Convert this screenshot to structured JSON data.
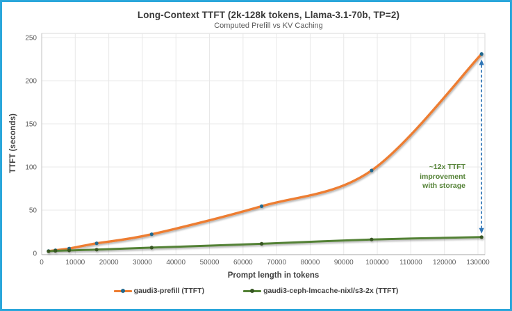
{
  "frame": {
    "border_color": "#2BA7DB",
    "background": "#ffffff"
  },
  "chart_data": {
    "type": "line",
    "title": "Long-Context TTFT (2k-128k tokens, Llama-3.1-70b, TP=2)",
    "subtitle": "Computed Prefill vs KV Caching",
    "xlabel": "Prompt length in tokens",
    "ylabel": "TTFT (seconds)",
    "x": [
      2048,
      4096,
      8192,
      16384,
      32768,
      65536,
      98304,
      131072
    ],
    "series": [
      {
        "name": "gaudi3-prefill (TTFT)",
        "color": "#ED7D31",
        "marker_color": "#21698F",
        "values": [
          2.5,
          3.5,
          5.5,
          11.5,
          22,
          54.5,
          96,
          231
        ]
      },
      {
        "name": "gaudi3-ceph-lmcache-nixl/s3-2x (TTFT)",
        "color": "#538135",
        "marker_color": "#375623",
        "values": [
          2.3,
          2.8,
          3.3,
          4.2,
          6.5,
          11,
          16,
          18.7
        ]
      }
    ],
    "x_ticks": [
      0,
      10000,
      20000,
      30000,
      40000,
      50000,
      60000,
      70000,
      80000,
      90000,
      100000,
      110000,
      120000,
      130000
    ],
    "y_ticks": [
      0,
      50,
      100,
      150,
      200,
      250
    ],
    "xlim": [
      0,
      131500
    ],
    "ylim": [
      0,
      250
    ],
    "grid": true,
    "legend_position": "bottom",
    "annotation": {
      "lines": [
        "~12x TTFT",
        "improvement",
        "with storage"
      ],
      "color": "#538135",
      "arrow_color": "#2E75B6",
      "at_x": 131072
    },
    "colors": {
      "gridline": "#E8E8E8",
      "plot_border": "#D9D9D9",
      "axis_line": "#A6A6A6",
      "tick_label": "#595959"
    }
  }
}
